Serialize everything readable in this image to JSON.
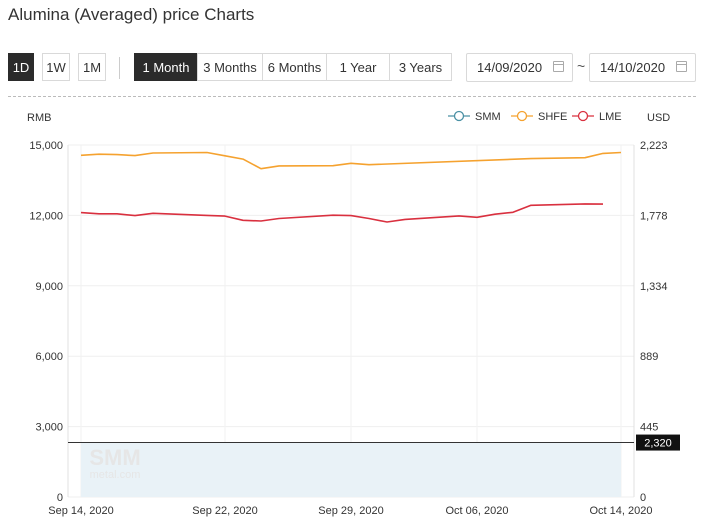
{
  "page": {
    "title": "Alumina (Averaged) price Charts"
  },
  "controls": {
    "interval_buttons": [
      "1D",
      "1W",
      "1M"
    ],
    "range_buttons": [
      "1 Month",
      "3 Months",
      "6 Months",
      "1 Year",
      "3 Years"
    ],
    "active_interval": "1D",
    "active_range": "1 Month",
    "date_from": "14/09/2020",
    "date_to": "14/10/2020",
    "date_separator": "~"
  },
  "watermark": "SMM",
  "watermark_sub": "metal.com",
  "chart_data": {
    "type": "line",
    "left_axis_label": "RMB",
    "right_axis_label": "USD",
    "ylim": [
      0,
      15000
    ],
    "yticks": [
      0,
      3000,
      6000,
      9000,
      12000,
      15000
    ],
    "ytick_labels": [
      "0",
      "3,000",
      "6,000",
      "9,000",
      "12,000",
      "15,000"
    ],
    "right_tick_labels": [
      "0",
      "445",
      "889",
      "1,334",
      "1,778",
      "2,223"
    ],
    "x_tick_labels": [
      "Sep 14, 2020",
      "Sep 22, 2020",
      "Sep 29, 2020",
      "Oct 06, 2020",
      "Oct 14, 2020"
    ],
    "x_tick_dates": [
      "2020-09-14",
      "2020-09-22",
      "2020-09-29",
      "2020-10-06",
      "2020-10-14"
    ],
    "x_range": [
      "2020-09-14",
      "2020-10-14"
    ],
    "legend_position": "top-right",
    "grid": true,
    "series": [
      {
        "name": "SMM",
        "color": "#4a90a4",
        "x": [],
        "values": []
      },
      {
        "name": "SHFE",
        "color": "#f5a22f",
        "x": [
          "2020-09-14",
          "2020-09-15",
          "2020-09-16",
          "2020-09-17",
          "2020-09-18",
          "2020-09-21",
          "2020-09-22",
          "2020-09-23",
          "2020-09-24",
          "2020-09-25",
          "2020-09-28",
          "2020-09-29",
          "2020-09-30",
          "2020-10-09",
          "2020-10-12",
          "2020-10-13",
          "2020-10-14"
        ],
        "values": [
          14560,
          14610,
          14590,
          14550,
          14660,
          14680,
          14540,
          14400,
          13990,
          14110,
          14120,
          14220,
          14160,
          14420,
          14460,
          14640,
          14680
        ]
      },
      {
        "name": "LME",
        "color": "#d9303f",
        "x": [
          "2020-09-14",
          "2020-09-15",
          "2020-09-16",
          "2020-09-17",
          "2020-09-18",
          "2020-09-21",
          "2020-09-22",
          "2020-09-23",
          "2020-09-24",
          "2020-09-25",
          "2020-09-28",
          "2020-09-29",
          "2020-09-30",
          "2020-10-01",
          "2020-10-02",
          "2020-10-05",
          "2020-10-06",
          "2020-10-07",
          "2020-10-08",
          "2020-10-09",
          "2020-10-12",
          "2020-10-13"
        ],
        "values": [
          12120,
          12070,
          12070,
          11990,
          12090,
          12000,
          11970,
          11790,
          11760,
          11870,
          12010,
          11990,
          11870,
          11720,
          11830,
          11980,
          11920,
          12050,
          12130,
          12430,
          12490,
          12480
        ]
      }
    ],
    "reference_line": {
      "value": 2320,
      "label": "2,320"
    }
  }
}
